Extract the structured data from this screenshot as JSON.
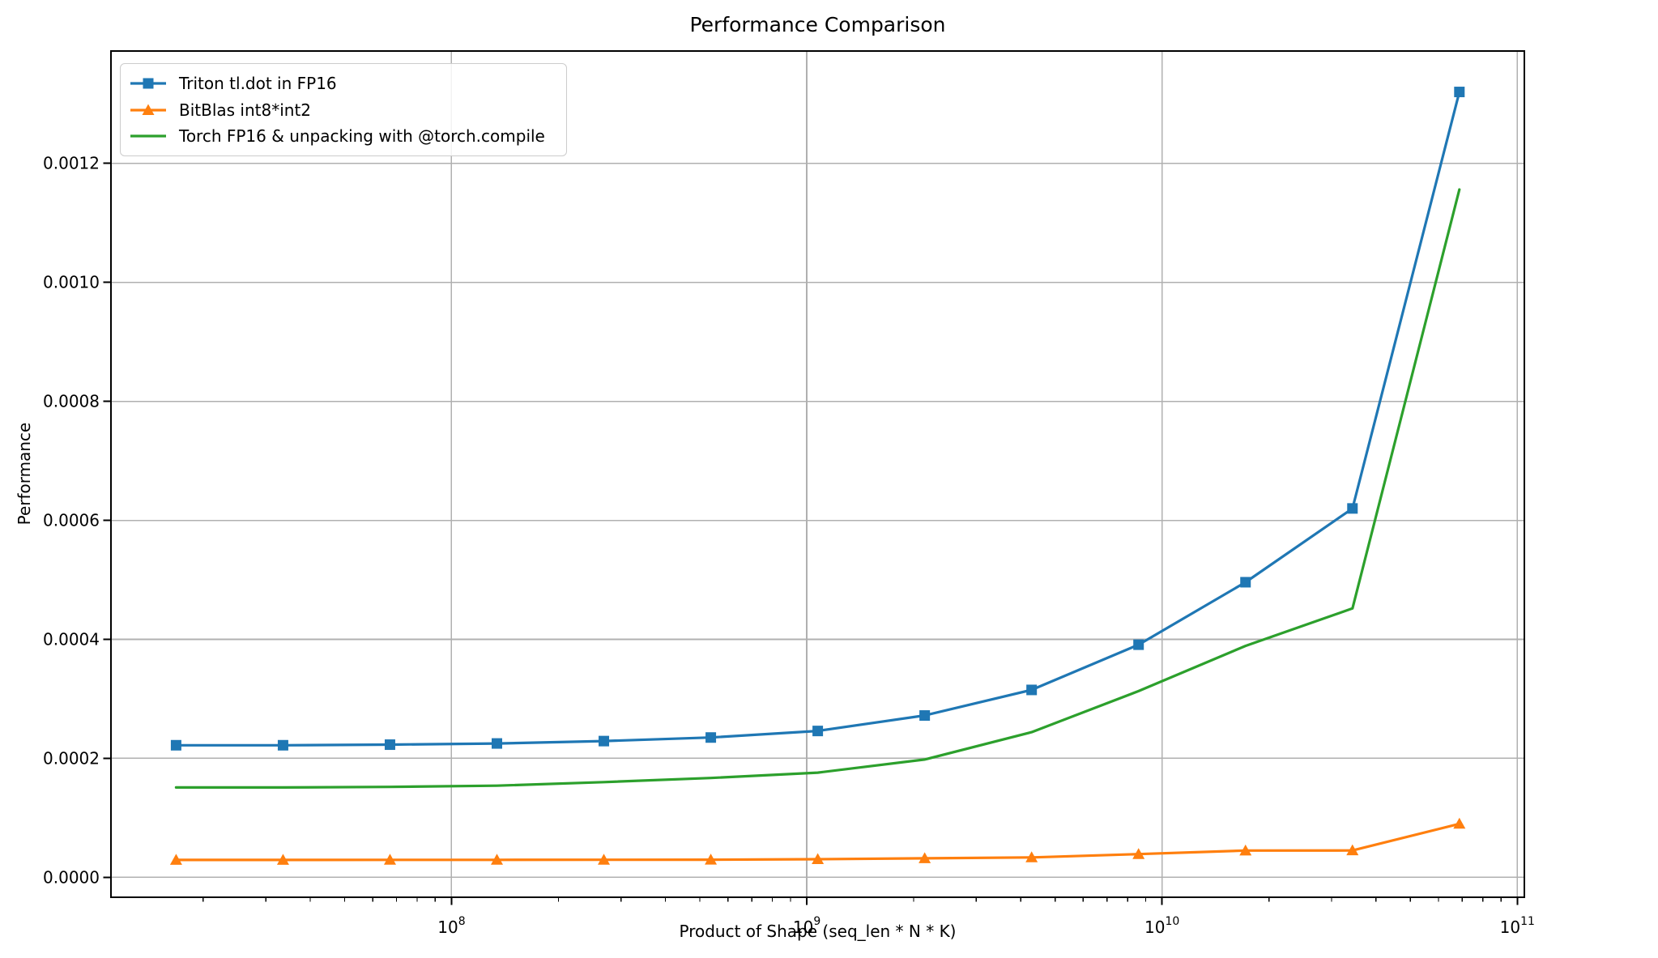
{
  "chart_data": {
    "type": "line",
    "title": "Performance Comparison",
    "xlabel": "Product of Shape (seq_len * N * K)",
    "ylabel": "Performance",
    "x_scale": "log",
    "grid": true,
    "legend_position": "upper left",
    "xlim": [
      11000000,
      104700000000
    ],
    "ylim": [
      -3.35e-05,
      0.0013888
    ],
    "x": [
      16777216,
      33554432,
      67108864,
      134217728,
      268435456,
      536870912,
      1073741824,
      2147483648,
      4294967296,
      8589934592,
      17179869184,
      34359738368,
      68719476736
    ],
    "series": [
      {
        "id": "triton-tldot-fp16",
        "name": "Triton tl.dot in FP16",
        "color": "#1f77b4",
        "marker": "square",
        "values": [
          0.000222,
          0.000222,
          0.000223,
          0.000225,
          0.000229,
          0.000235,
          0.000246,
          0.000272,
          0.000315,
          0.000391,
          0.000496,
          0.00062,
          0.00132
        ]
      },
      {
        "id": "bitblas-int8-int2",
        "name": "BitBlas int8*int2",
        "color": "#ff7f0e",
        "marker": "triangle-up",
        "values": [
          2.93e-05,
          2.93e-05,
          2.94e-05,
          2.94e-05,
          2.95e-05,
          2.97e-05,
          3.05e-05,
          3.2e-05,
          3.35e-05,
          3.9e-05,
          4.5e-05,
          4.52e-05,
          9e-05
        ]
      },
      {
        "id": "torch-fp16-unpacking-compile",
        "name": "Torch FP16 & unpacking with @torch.compile",
        "color": "#2ca02c",
        "marker": "none",
        "values": [
          0.000151,
          0.000151,
          0.000152,
          0.000154,
          0.00016,
          0.000167,
          0.000176,
          0.000198,
          0.000244,
          0.000313,
          0.000389,
          0.000452,
          0.001156
        ]
      }
    ],
    "x_ticks": [
      {
        "value": 100000000,
        "base": "10",
        "exponent": "8"
      },
      {
        "value": 1000000000,
        "base": "10",
        "exponent": "9"
      },
      {
        "value": 10000000000,
        "base": "10",
        "exponent": "10"
      },
      {
        "value": 100000000000,
        "base": "10",
        "exponent": "11"
      }
    ],
    "y_ticks": [
      {
        "value": 0.0,
        "label": "0.0000"
      },
      {
        "value": 0.0002,
        "label": "0.0002"
      },
      {
        "value": 0.0004,
        "label": "0.0004"
      },
      {
        "value": 0.0006,
        "label": "0.0006"
      },
      {
        "value": 0.0008,
        "label": "0.0008"
      },
      {
        "value": 0.001,
        "label": "0.0010"
      },
      {
        "value": 0.0012,
        "label": "0.0012"
      }
    ]
  },
  "colors": {
    "grid": "#b0b0b0",
    "spine": "#000000",
    "tick": "#000000",
    "text": "#000000",
    "background": "#ffffff",
    "legend_border": "#cccccc"
  }
}
